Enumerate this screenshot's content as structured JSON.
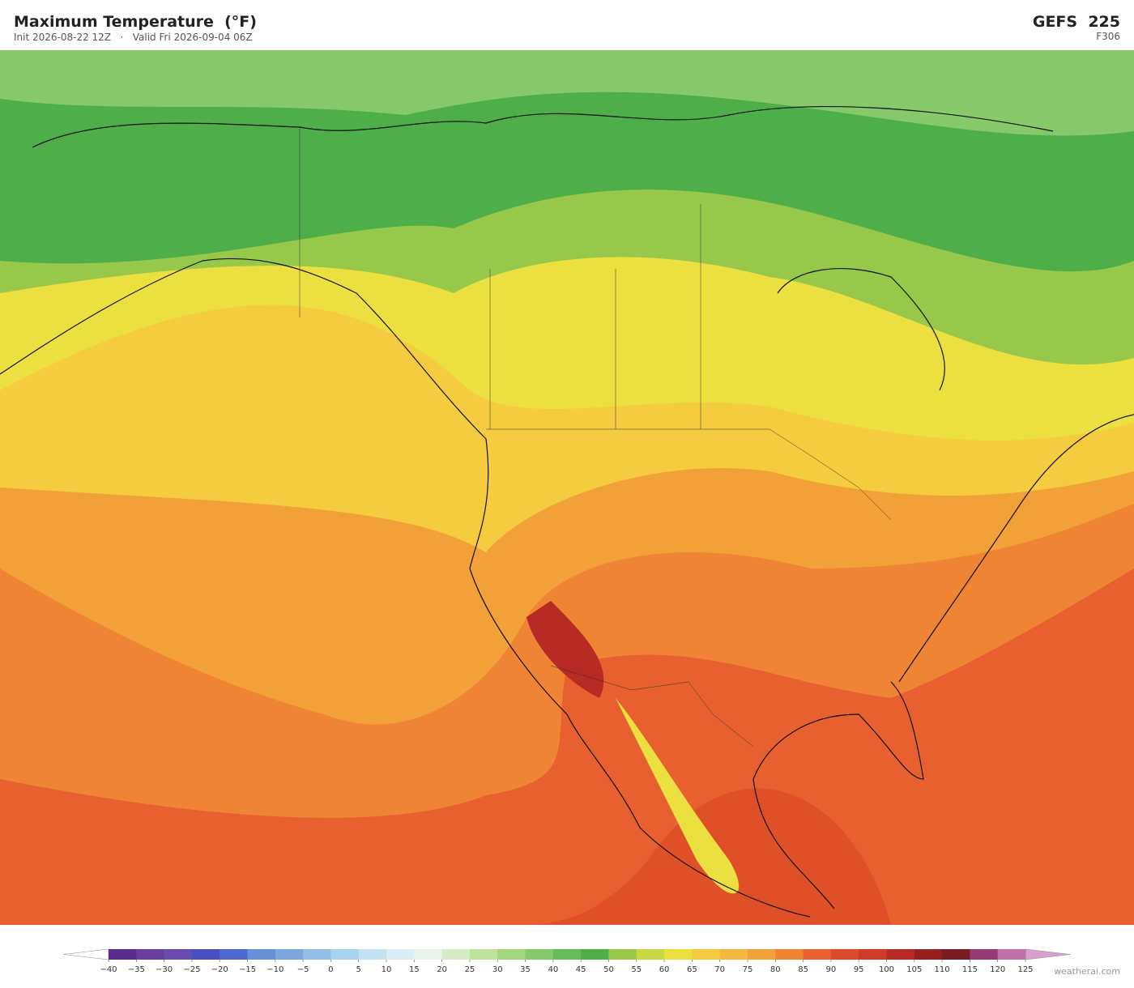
{
  "header": {
    "title": "Maximum Temperature  (°F)",
    "subtitle": "Init 2026-08-22 12Z   ·   Valid Fri 2026-09-04 06Z",
    "model": "GEFS  225",
    "forecast_hour": "F306"
  },
  "colorbar": {
    "labels": [
      "−40",
      "−35",
      "−30",
      "−25",
      "−20",
      "−15",
      "−10",
      "−5",
      "0",
      "5",
      "10",
      "15",
      "20",
      "25",
      "30",
      "35",
      "40",
      "45",
      "50",
      "55",
      "60",
      "65",
      "70",
      "75",
      "80",
      "85",
      "90",
      "95",
      "100",
      "105",
      "110",
      "115",
      "120",
      "125"
    ],
    "colors": [
      "#5b2a8f",
      "#6a3ea1",
      "#6a4bb0",
      "#4a4fc0",
      "#4f6ad0",
      "#6690d8",
      "#7aa8dd",
      "#93bde6",
      "#a9d2ee",
      "#c2e2f2",
      "#d8eef4",
      "#e6f4ea",
      "#d4ecc4",
      "#bce29c",
      "#a2d67f",
      "#86c96a",
      "#66bb5a",
      "#4eae4a",
      "#98c84a",
      "#c8d840",
      "#ece040",
      "#f5cc40",
      "#f5b83c",
      "#f2a038",
      "#ee8434",
      "#e86030",
      "#e04a2a",
      "#d03a28",
      "#b82a24",
      "#962020",
      "#7a1a22",
      "#9a3a72",
      "#c070a8"
    ],
    "under_color": "#ffffff",
    "over_color": "#d8a0cc"
  },
  "footer": {
    "watermark": "weatherai.com"
  }
}
